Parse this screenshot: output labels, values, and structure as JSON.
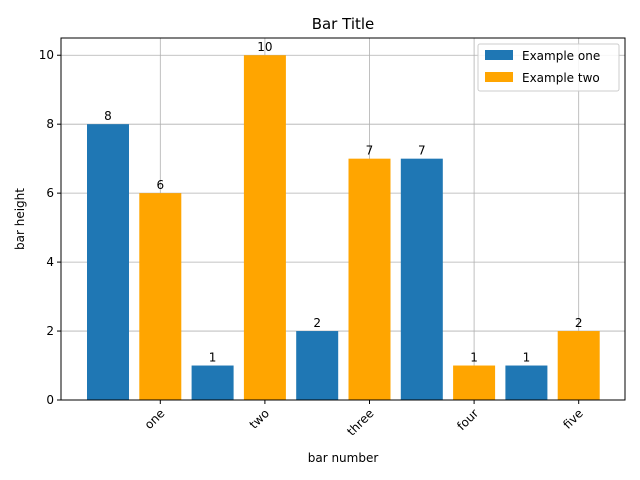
{
  "chart_data": {
    "type": "bar",
    "title": "Bar Title",
    "xlabel": "bar number",
    "ylabel": "bar height",
    "categories": [
      "one",
      "two",
      "three",
      "four",
      "five"
    ],
    "ylim": [
      0,
      10.5
    ],
    "yticks": [
      0,
      2,
      4,
      6,
      8,
      10
    ],
    "grid": true,
    "legend_placement": "top-right",
    "series": [
      {
        "name": "Example one",
        "color": "#1f77b4",
        "values": [
          8,
          1,
          2,
          7,
          1
        ]
      },
      {
        "name": "Example two",
        "color": "#ffa500",
        "values": [
          6,
          10,
          7,
          1,
          2
        ]
      }
    ]
  }
}
